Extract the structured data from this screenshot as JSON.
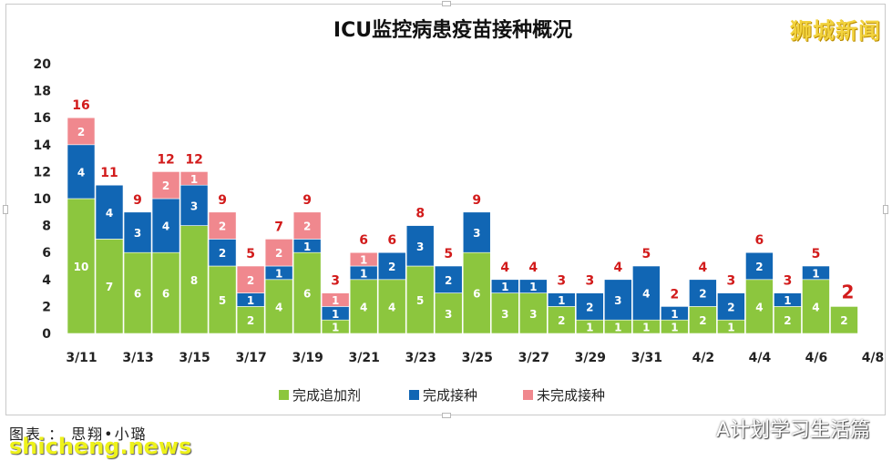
{
  "watermark": "狮城新闻",
  "footer": {
    "credit": "图表 ： 思翔•小璐",
    "site": "shicheng.news",
    "account": "A计划学习生活篇",
    "account_icon": "wechat-icon"
  },
  "colors": {
    "booster": "#8cc63e",
    "vaccinated": "#1166b4",
    "unvaccinated": "#f0888e",
    "total_label": "#d21b1b",
    "segment_label": "#ffffff"
  },
  "chart_data": {
    "type": "bar",
    "stacked": true,
    "title": "ICU监控病患疫苗接种概况",
    "xlabel": "",
    "ylabel": "",
    "ylim": [
      0,
      20
    ],
    "yticks": [
      0,
      2,
      4,
      6,
      8,
      10,
      12,
      14,
      16,
      18,
      20
    ],
    "grid": false,
    "legend_position": "bottom",
    "categories": [
      "3/11",
      "3/12",
      "3/13",
      "3/14",
      "3/15",
      "3/16",
      "3/17",
      "3/18",
      "3/19",
      "3/20",
      "3/21",
      "3/22",
      "3/23",
      "3/24",
      "3/25",
      "3/26",
      "3/27",
      "3/28",
      "3/29",
      "3/30",
      "3/31",
      "4/1",
      "4/2",
      "4/3",
      "4/4",
      "4/5",
      "4/6",
      "4/7"
    ],
    "x_tick_labels": [
      "3/11",
      "3/13",
      "3/15",
      "3/17",
      "3/19",
      "3/21",
      "3/23",
      "3/25",
      "3/27",
      "3/29",
      "3/31",
      "4/2",
      "4/4",
      "4/6",
      "4/8"
    ],
    "series": [
      {
        "name": "完成追加剂",
        "values": [
          10,
          7,
          6,
          6,
          8,
          5,
          2,
          4,
          6,
          1,
          4,
          4,
          5,
          3,
          6,
          3,
          3,
          2,
          1,
          1,
          1,
          1,
          2,
          1,
          4,
          2,
          4,
          2
        ]
      },
      {
        "name": "完成接种",
        "values": [
          4,
          4,
          3,
          4,
          3,
          2,
          1,
          1,
          1,
          1,
          1,
          2,
          3,
          2,
          3,
          1,
          1,
          1,
          2,
          3,
          4,
          1,
          2,
          2,
          2,
          1,
          1,
          0
        ]
      },
      {
        "name": "未完成接种",
        "values": [
          2,
          0,
          0,
          2,
          1,
          2,
          2,
          2,
          2,
          1,
          1,
          0,
          0,
          0,
          0,
          0,
          0,
          0,
          0,
          0,
          0,
          0,
          0,
          0,
          0,
          0,
          0,
          0
        ]
      }
    ],
    "totals": [
      16,
      11,
      9,
      12,
      12,
      9,
      5,
      7,
      9,
      3,
      6,
      6,
      8,
      5,
      9,
      4,
      4,
      3,
      3,
      4,
      5,
      2,
      4,
      3,
      6,
      3,
      5,
      2
    ]
  }
}
